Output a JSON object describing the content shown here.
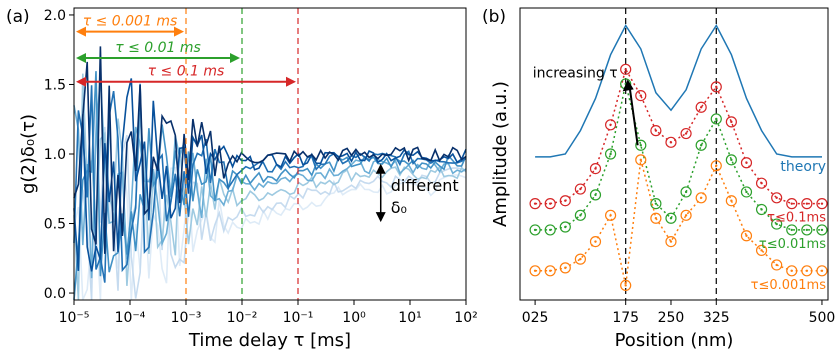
{
  "chart_data": [
    {
      "type": "line",
      "panel_label": "(a)",
      "xlabel": "Time delay τ [ms]",
      "ylabel": "g(2)δ₀(τ)",
      "xscale": "log",
      "xlim": [
        1e-05,
        100
      ],
      "ylim": [
        -0.05,
        2.05
      ],
      "x_ticks": [
        "10⁻⁵",
        "10⁻⁴",
        "10⁻³",
        "10⁻²",
        "10⁻¹",
        "10⁰",
        "10¹",
        "10²"
      ],
      "y_ticks": [
        "0.0",
        "0.5",
        "1.0",
        "1.5",
        "2.0"
      ],
      "vlines": [
        {
          "x": 0.001,
          "color": "#ff7f0e",
          "label": "τ ≤ 0.001 ms"
        },
        {
          "x": 0.01,
          "color": "#2ca02c",
          "label": "τ ≤ 0.01 ms"
        },
        {
          "x": 0.1,
          "color": "#d62728",
          "label": "τ ≤ 0.1 ms"
        }
      ],
      "arrow_ys": [
        1.88,
        1.69,
        1.52
      ],
      "annotation": {
        "line1": "different",
        "line2": "δ₀",
        "y_top": 0.93,
        "y_bottom": 0.51,
        "x": 3
      },
      "series": [
        {
          "color": "#08306b",
          "tail": 1.0,
          "floor": 0.97
        },
        {
          "color": "#08519c",
          "tail": 0.99,
          "floor": 0.93
        },
        {
          "color": "#2171b5",
          "tail": 0.97,
          "floor": 0.88
        },
        {
          "color": "#4292c6",
          "tail": 0.94,
          "floor": 0.82
        },
        {
          "color": "#6baed6",
          "tail": 0.91,
          "floor": 0.77
        },
        {
          "color": "#9ecae1",
          "tail": 0.86,
          "floor": 0.68
        },
        {
          "color": "#c6dbef",
          "tail": 0.8,
          "floor": 0.58
        },
        {
          "color": "#deebf7",
          "tail": 0.75,
          "floor": 0.5
        }
      ]
    },
    {
      "type": "line",
      "panel_label": "(b)",
      "xlabel": "Position (nm)",
      "ylabel": "Amplitude (a.u.)",
      "x_ticks": [
        "025",
        "175",
        "250",
        "325",
        "500"
      ],
      "x_tick_values": [
        25,
        175,
        250,
        325,
        500
      ],
      "xlim": [
        0,
        510
      ],
      "ylim": [
        0,
        1
      ],
      "vlines": [
        175,
        325
      ],
      "positions": [
        25,
        50,
        75,
        100,
        125,
        150,
        175,
        200,
        225,
        250,
        275,
        300,
        325,
        350,
        375,
        400,
        425,
        450,
        475,
        500
      ],
      "theory": {
        "label": "theory",
        "color": "#1f77b4",
        "values": [
          0.49,
          0.49,
          0.5,
          0.58,
          0.69,
          0.84,
          0.94,
          0.86,
          0.71,
          0.65,
          0.72,
          0.86,
          0.94,
          0.84,
          0.69,
          0.58,
          0.5,
          0.49,
          0.49,
          0.49
        ]
      },
      "annotation_text": "increasing τ",
      "series": [
        {
          "label": "τ≤0.1ms",
          "color": "#d62728",
          "values": [
            0.33,
            0.33,
            0.34,
            0.38,
            0.45,
            0.6,
            0.79,
            0.7,
            0.58,
            0.54,
            0.57,
            0.66,
            0.73,
            0.61,
            0.47,
            0.4,
            0.35,
            0.33,
            0.33,
            0.33
          ]
        },
        {
          "label": "τ≤0.01ms",
          "color": "#2ca02c",
          "values": [
            0.24,
            0.24,
            0.25,
            0.29,
            0.36,
            0.5,
            0.74,
            0.53,
            0.33,
            0.28,
            0.37,
            0.53,
            0.62,
            0.48,
            0.37,
            0.31,
            0.26,
            0.24,
            0.24,
            0.24
          ]
        },
        {
          "label": "τ≤0.001ms",
          "color": "#ff7f0e",
          "values": [
            0.1,
            0.1,
            0.11,
            0.14,
            0.2,
            0.29,
            0.05,
            0.48,
            0.28,
            0.2,
            0.29,
            0.35,
            0.46,
            0.34,
            0.22,
            0.17,
            0.12,
            0.1,
            0.1,
            0.1
          ]
        }
      ]
    }
  ]
}
